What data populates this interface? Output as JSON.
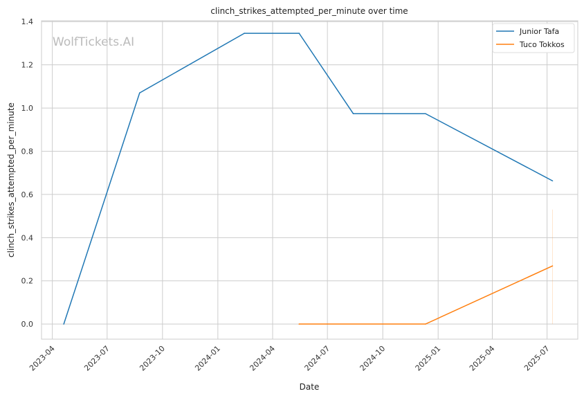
{
  "chart_data": {
    "type": "line",
    "title": "clinch_strikes_attempted_per_minute over time",
    "xlabel": "Date",
    "ylabel": "clinch_strikes_attempted_per_minute",
    "watermark": "WolfTickets.AI",
    "xlim": [
      "2023-03-14",
      "2025-08-21"
    ],
    "ylim": [
      -0.07,
      1.404
    ],
    "grid": true,
    "legend_position": "top-right",
    "x_ticks": [
      "2023-04-01",
      "2023-07-01",
      "2023-10-01",
      "2024-01-01",
      "2024-04-01",
      "2024-07-01",
      "2024-10-01",
      "2025-01-01",
      "2025-04-01",
      "2025-07-01"
    ],
    "x_tick_labels": [
      "2023-04",
      "2023-07",
      "2023-10",
      "2024-01",
      "2024-04",
      "2024-07",
      "2024-10",
      "2025-01",
      "2025-04",
      "2025-07"
    ],
    "y_ticks": [
      0.0,
      0.2,
      0.4,
      0.6,
      0.8,
      1.0,
      1.2,
      1.4
    ],
    "y_tick_labels": [
      "0.0",
      "0.2",
      "0.4",
      "0.6",
      "0.8",
      "1.0",
      "1.2",
      "1.4"
    ],
    "series": [
      {
        "name": "Junior Tafa",
        "color": "#1f77b4",
        "x": [
          "2023-04-20",
          "2023-08-24",
          "2024-02-14",
          "2024-05-15",
          "2024-08-13",
          "2024-12-11",
          "2025-07-10"
        ],
        "y": [
          0.0,
          1.07,
          1.346,
          1.346,
          0.974,
          0.974,
          0.663
        ]
      },
      {
        "name": "Tuco Tokkos",
        "color": "#ff7f0e",
        "x": [
          "2024-05-15",
          "2024-12-11",
          "2025-07-10"
        ],
        "y": [
          0.0,
          0.0,
          0.269
        ],
        "band": {
          "x": "2025-07-10",
          "low": 0.0,
          "high": 0.53
        }
      }
    ]
  }
}
